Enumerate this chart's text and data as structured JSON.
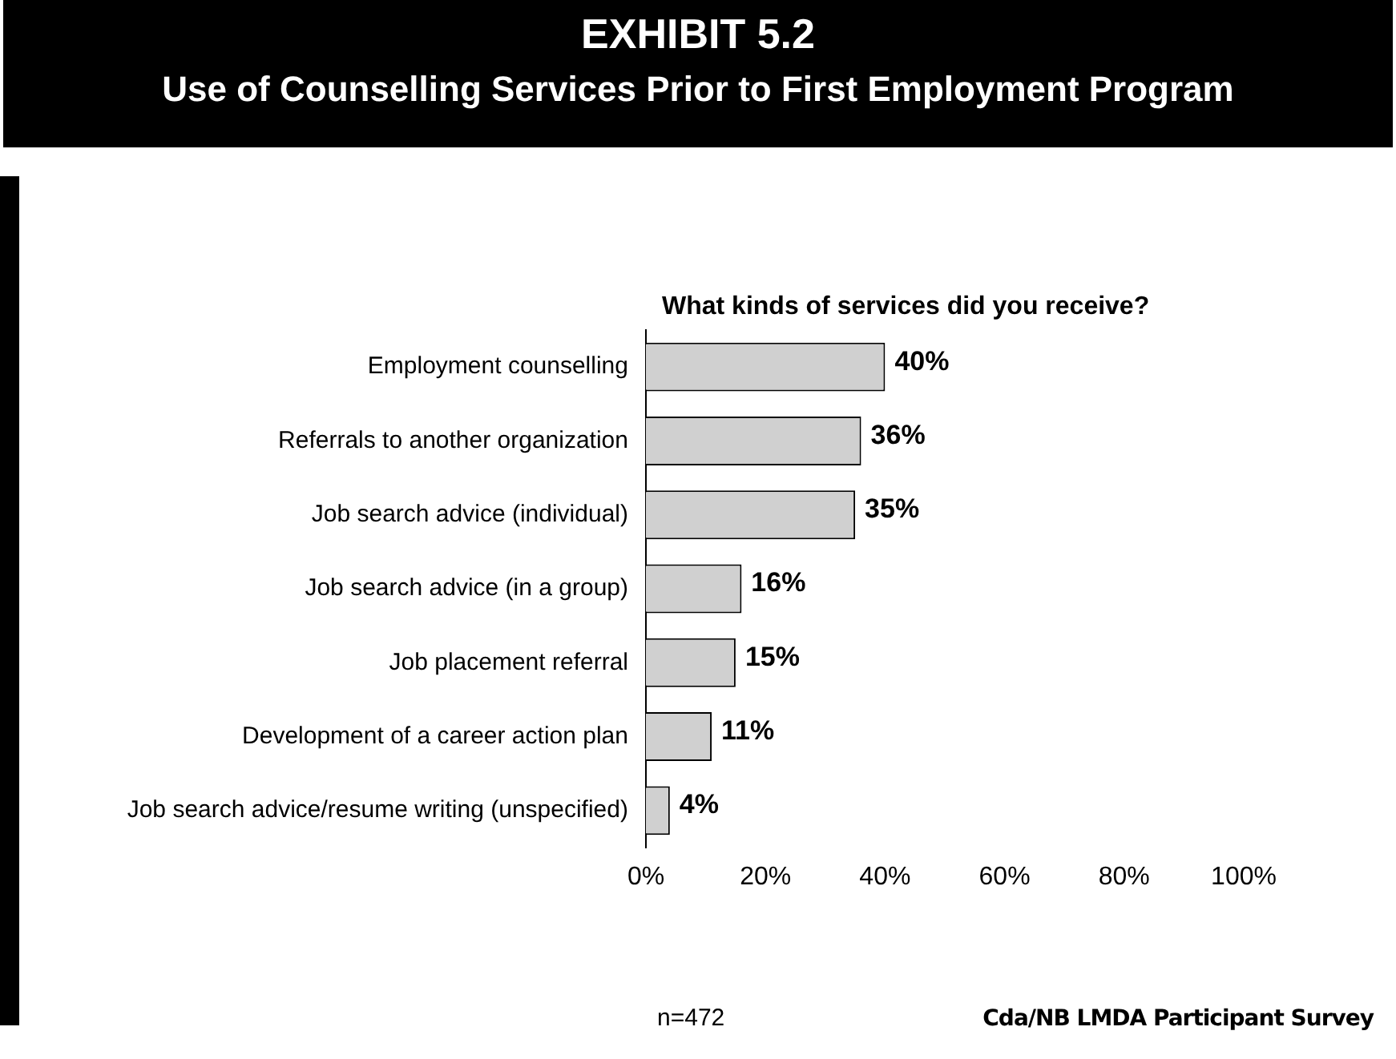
{
  "chart_data": {
    "type": "bar",
    "orientation": "horizontal",
    "title": "EXHIBIT 5.2",
    "subtitle": "Use of Counselling Services Prior to First Employment Program",
    "categories": [
      "Employment counselling",
      "Referrals to another organization",
      "Job search advice (individual)",
      "Job search advice (in a group)",
      "Job placement referral",
      "Development of a career action plan",
      "Job search advice/resume writing (unspecified)"
    ],
    "values": [
      40,
      36,
      35,
      16,
      15,
      11,
      4
    ],
    "value_labels": [
      "40%",
      "36%",
      "35%",
      "16%",
      "15%",
      "11%",
      "4%"
    ],
    "color": "#d0d0d0",
    "xlim": [
      0,
      100
    ],
    "xticks": [
      {
        "value": 0,
        "label": "0%"
      },
      {
        "value": 20,
        "label": "20%"
      },
      {
        "value": 40,
        "label": "40%"
      },
      {
        "value": 60,
        "label": "60%"
      },
      {
        "value": 80,
        "label": "80%"
      },
      {
        "value": 100,
        "label": "100%"
      }
    ],
    "grid": false,
    "legend": false,
    "annotations": [
      "What kinds of services did you receive?",
      "n=472",
      "Cda/NB LMDA Participant Survey"
    ]
  }
}
